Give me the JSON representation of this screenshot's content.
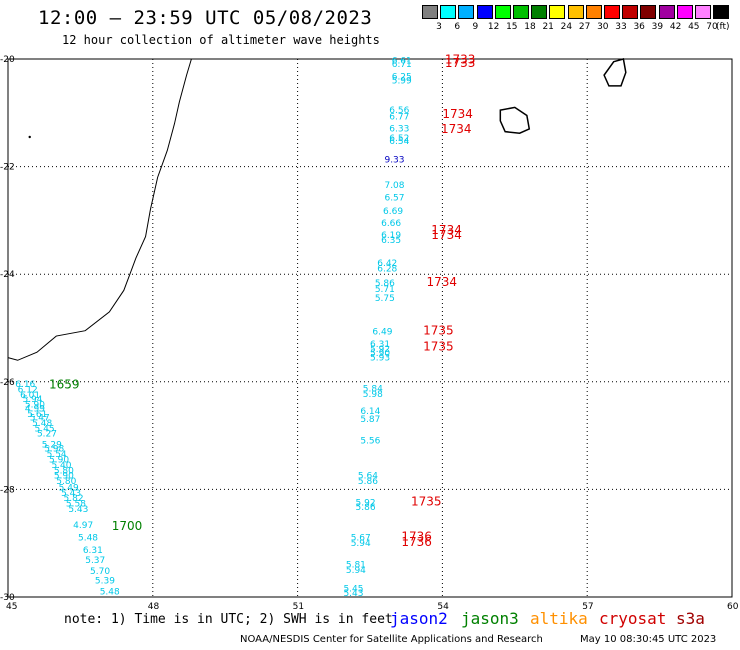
{
  "header": {
    "title": "12:00 – 23:59 UTC 05/08/2023",
    "subtitle": "12 hour collection of altimeter wave heights"
  },
  "legend": {
    "unit": "(ft)",
    "colors": [
      "#808080",
      "#00ffff",
      "#00b0ff",
      "#0000ff",
      "#00ff00",
      "#00c000",
      "#008000",
      "#ffff00",
      "#ffc000",
      "#ff8000",
      "#ff0000",
      "#c00000",
      "#800000",
      "#a000a0",
      "#ff00ff",
      "#ff80ff",
      "#000000"
    ],
    "labels": [
      "3",
      "6",
      "9",
      "12",
      "15",
      "18",
      "21",
      "24",
      "27",
      "30",
      "33",
      "36",
      "39",
      "42",
      "45",
      "70"
    ]
  },
  "axes": {
    "lon_ticks": [
      "45",
      "48",
      "51",
      "54",
      "57",
      "60"
    ],
    "lat_ticks": [
      "-20",
      "-22",
      "-24",
      "-26",
      "-28",
      "-30"
    ]
  },
  "track_labels": [
    {
      "t": "1733",
      "lon": 54.05,
      "lat": -20.08,
      "c": "#e00000"
    },
    {
      "t": "1733",
      "lon": 54.05,
      "lat": -20.15,
      "c": "#e00000"
    },
    {
      "t": "1734",
      "lon": 54.0,
      "lat": -21.1,
      "c": "#e00000"
    },
    {
      "t": "1734",
      "lon": 53.97,
      "lat": -21.38,
      "c": "#e00000"
    },
    {
      "t": "1734",
      "lon": 53.77,
      "lat": -23.25,
      "c": "#e00000"
    },
    {
      "t": "1734",
      "lon": 53.77,
      "lat": -23.35,
      "c": "#e00000"
    },
    {
      "t": "1734",
      "lon": 53.67,
      "lat": -24.22,
      "c": "#e00000"
    },
    {
      "t": "1735",
      "lon": 53.6,
      "lat": -25.12,
      "c": "#e00000"
    },
    {
      "t": "1735",
      "lon": 53.6,
      "lat": -25.42,
      "c": "#e00000"
    },
    {
      "t": "1735",
      "lon": 53.35,
      "lat": -28.3,
      "c": "#e00000"
    },
    {
      "t": "1736",
      "lon": 53.15,
      "lat": -28.95,
      "c": "#e00000"
    },
    {
      "t": "1736",
      "lon": 53.15,
      "lat": -29.05,
      "c": "#e00000"
    },
    {
      "t": "1659",
      "lon": 45.85,
      "lat": -26.12,
      "c": "#008000"
    },
    {
      "t": "1700",
      "lon": 47.15,
      "lat": -28.75,
      "c": "#008000"
    }
  ],
  "swh_labels": [
    {
      "t": "6.61",
      "lon": 52.95,
      "lat": -20.08
    },
    {
      "t": "6.71",
      "lon": 52.95,
      "lat": -20.15
    },
    {
      "t": "6.25",
      "lon": 52.95,
      "lat": -20.38
    },
    {
      "t": "5.99",
      "lon": 52.95,
      "lat": -20.46
    },
    {
      "t": "6.56",
      "lon": 52.9,
      "lat": -21.0
    },
    {
      "t": "6.77",
      "lon": 52.9,
      "lat": -21.12
    },
    {
      "t": "6.33",
      "lon": 52.9,
      "lat": -21.35
    },
    {
      "t": "6.52",
      "lon": 52.9,
      "lat": -21.52
    },
    {
      "t": "6.54",
      "lon": 52.9,
      "lat": -21.58
    },
    {
      "t": "9.33",
      "lon": 52.8,
      "lat": -21.92,
      "c": "#0000c0"
    },
    {
      "t": "7.08",
      "lon": 52.8,
      "lat": -22.4
    },
    {
      "t": "6.57",
      "lon": 52.8,
      "lat": -22.63
    },
    {
      "t": "6.69",
      "lon": 52.77,
      "lat": -22.88
    },
    {
      "t": "6.66",
      "lon": 52.73,
      "lat": -23.1
    },
    {
      "t": "6.19",
      "lon": 52.73,
      "lat": -23.33
    },
    {
      "t": "6.35",
      "lon": 52.73,
      "lat": -23.42
    },
    {
      "t": "6.42",
      "lon": 52.65,
      "lat": -23.85
    },
    {
      "t": "6.28",
      "lon": 52.65,
      "lat": -23.95
    },
    {
      "t": "5.86",
      "lon": 52.6,
      "lat": -24.22
    },
    {
      "t": "5.71",
      "lon": 52.6,
      "lat": -24.33
    },
    {
      "t": "5.75",
      "lon": 52.6,
      "lat": -24.5
    },
    {
      "t": "6.49",
      "lon": 52.55,
      "lat": -25.12
    },
    {
      "t": "6.31",
      "lon": 52.5,
      "lat": -25.35
    },
    {
      "t": "5.92",
      "lon": 52.5,
      "lat": -25.45
    },
    {
      "t": "5.90",
      "lon": 52.5,
      "lat": -25.52
    },
    {
      "t": "5.93",
      "lon": 52.5,
      "lat": -25.6
    },
    {
      "t": "5.84",
      "lon": 52.35,
      "lat": -26.18
    },
    {
      "t": "5.98",
      "lon": 52.35,
      "lat": -26.28
    },
    {
      "t": "6.14",
      "lon": 52.3,
      "lat": -26.6
    },
    {
      "t": "5.87",
      "lon": 52.3,
      "lat": -26.75
    },
    {
      "t": "5.56",
      "lon": 52.3,
      "lat": -27.15
    },
    {
      "t": "5.64",
      "lon": 52.25,
      "lat": -27.8
    },
    {
      "t": "5.86",
      "lon": 52.25,
      "lat": -27.9
    },
    {
      "t": "5.92",
      "lon": 52.2,
      "lat": -28.3
    },
    {
      "t": "5.86",
      "lon": 52.2,
      "lat": -28.38
    },
    {
      "t": "5.67",
      "lon": 52.1,
      "lat": -28.95
    },
    {
      "t": "5.94",
      "lon": 52.1,
      "lat": -29.05
    },
    {
      "t": "5.81",
      "lon": 52.0,
      "lat": -29.45
    },
    {
      "t": "5.94",
      "lon": 52.0,
      "lat": -29.55
    },
    {
      "t": "5.45",
      "lon": 51.95,
      "lat": -29.9
    },
    {
      "t": "5.43",
      "lon": 51.95,
      "lat": -29.98
    },
    {
      "t": "6.16",
      "lon": 45.15,
      "lat": -26.1
    },
    {
      "t": "6.12",
      "lon": 45.2,
      "lat": -26.2
    },
    {
      "t": "6.01",
      "lon": 45.25,
      "lat": -26.3
    },
    {
      "t": "5.94",
      "lon": 45.3,
      "lat": -26.38
    },
    {
      "t": "5.90",
      "lon": 45.35,
      "lat": -26.48
    },
    {
      "t": "4.99",
      "lon": 45.35,
      "lat": -26.55
    },
    {
      "t": "5.61",
      "lon": 45.4,
      "lat": -26.65
    },
    {
      "t": "5.47",
      "lon": 45.45,
      "lat": -26.72
    },
    {
      "t": "5.48",
      "lon": 45.5,
      "lat": -26.82
    },
    {
      "t": "5.45",
      "lon": 45.55,
      "lat": -26.92
    },
    {
      "t": "5.27",
      "lon": 45.6,
      "lat": -27.02
    },
    {
      "t": "5.29",
      "lon": 45.7,
      "lat": -27.22
    },
    {
      "t": "5.98",
      "lon": 45.75,
      "lat": -27.3
    },
    {
      "t": "5.54",
      "lon": 45.8,
      "lat": -27.4
    },
    {
      "t": "5.90",
      "lon": 45.85,
      "lat": -27.5
    },
    {
      "t": "5.40",
      "lon": 45.9,
      "lat": -27.6
    },
    {
      "t": "5.80",
      "lon": 45.95,
      "lat": -27.7
    },
    {
      "t": "5.90",
      "lon": 45.95,
      "lat": -27.8
    },
    {
      "t": "5.80",
      "lon": 46.0,
      "lat": -27.9
    },
    {
      "t": "5.49",
      "lon": 46.05,
      "lat": -28.02
    },
    {
      "t": "5.43",
      "lon": 46.1,
      "lat": -28.12
    },
    {
      "t": "5.82",
      "lon": 46.15,
      "lat": -28.22
    },
    {
      "t": "5.58",
      "lon": 46.2,
      "lat": -28.32
    },
    {
      "t": "5.43",
      "lon": 46.25,
      "lat": -28.42
    },
    {
      "t": "4.97",
      "lon": 46.35,
      "lat": -28.72
    },
    {
      "t": "5.48",
      "lon": 46.45,
      "lat": -28.95
    },
    {
      "t": "6.31",
      "lon": 46.55,
      "lat": -29.18
    },
    {
      "t": "5.37",
      "lon": 46.6,
      "lat": -29.37
    },
    {
      "t": "5.70",
      "lon": 46.7,
      "lat": -29.57
    },
    {
      "t": "5.39",
      "lon": 46.8,
      "lat": -29.75
    },
    {
      "t": "5.48",
      "lon": 46.9,
      "lat": -29.95
    }
  ],
  "footer": {
    "note": "note: 1) Time is in UTC; 2) SWH is in feet",
    "source": "NOAA/NESDIS Center for Satellite Applications and Research",
    "timestamp": "May 10 08:30:45 UTC 2023",
    "missions": [
      {
        "name": "jason2",
        "color": "#0000ff"
      },
      {
        "name": "jason3",
        "color": "#008000"
      },
      {
        "name": "altika",
        "color": "#ff9000"
      },
      {
        "name": "cryosat",
        "color": "#d00000"
      },
      {
        "name": "s3a",
        "color": "#a00000"
      }
    ]
  }
}
